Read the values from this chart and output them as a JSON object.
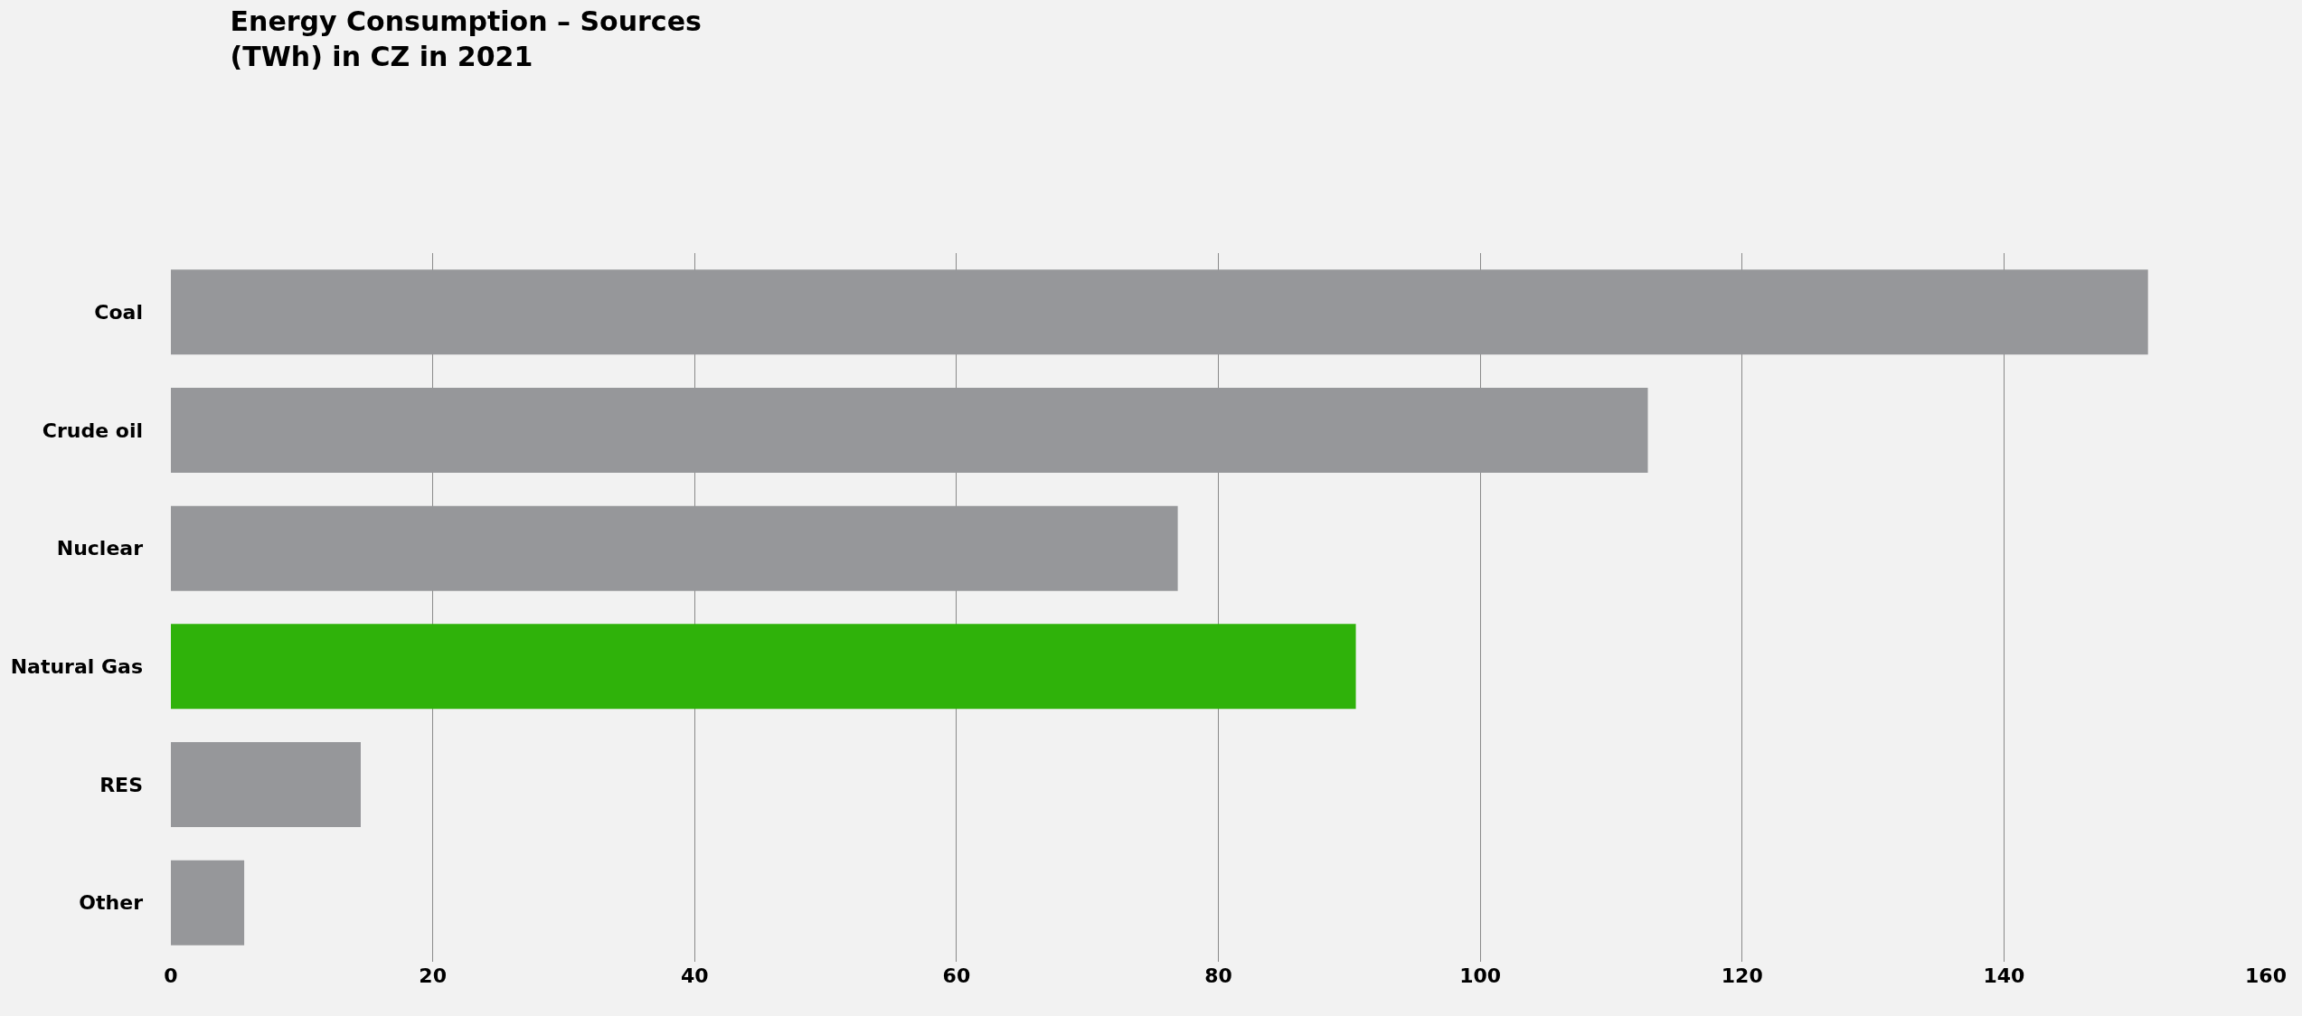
{
  "chart_data": {
    "type": "bar",
    "orientation": "horizontal",
    "title": "Energy Consumption – Sources\n(TWh) in CZ in 2021",
    "categories": [
      "Coal",
      "Crude oil",
      "Nuclear",
      "Natural Gas",
      "RES",
      "Other"
    ],
    "values": [
      151.0,
      112.8,
      76.9,
      90.5,
      14.5,
      5.6
    ],
    "colors": [
      "#96979a",
      "#96979a",
      "#96979a",
      "#2fb20a",
      "#96979a",
      "#96979a"
    ],
    "xlim": [
      0,
      160
    ],
    "xticks": [
      0,
      20,
      40,
      60,
      80,
      100,
      120,
      140,
      160
    ],
    "grid": "x"
  }
}
